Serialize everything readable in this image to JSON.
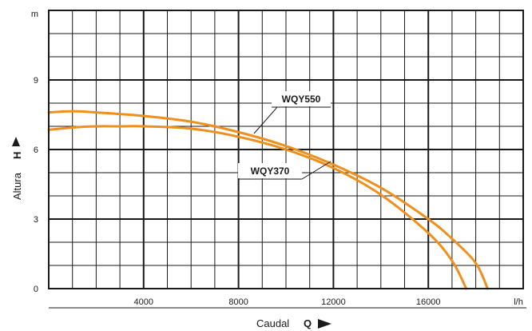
{
  "chart_data": {
    "type": "line",
    "x_axis": {
      "title": "Caudal",
      "letter": "Q",
      "unit": "l/h",
      "range": [
        0,
        20000
      ],
      "tick_values": [
        4000,
        8000,
        12000,
        16000
      ],
      "tick_labels": [
        "4000",
        "8000",
        "12000",
        "16000"
      ],
      "minor_step": 1000
    },
    "y_axis": {
      "title": "Altura",
      "letter": "H",
      "unit": "m",
      "range": [
        0,
        12
      ],
      "tick_values": [
        0,
        3,
        6,
        9
      ],
      "tick_labels": [
        "0",
        "3",
        "6",
        "9"
      ],
      "minor_step": 1
    },
    "grid": true,
    "series": [
      {
        "name": "WQY550",
        "color": "#f0901c",
        "x": [
          0,
          1000,
          2000,
          4000,
          6000,
          8000,
          10000,
          12000,
          14000,
          16000,
          17000,
          18000,
          18500
        ],
        "y": [
          7.6,
          7.65,
          7.6,
          7.45,
          7.2,
          6.75,
          6.15,
          5.35,
          4.35,
          3.0,
          2.15,
          1.1,
          0.0
        ]
      },
      {
        "name": "WQY370",
        "color": "#f0901c",
        "x": [
          0,
          1000,
          2000,
          3000,
          4000,
          6000,
          8000,
          10000,
          12000,
          14000,
          16000,
          17000,
          17600
        ],
        "y": [
          6.85,
          6.95,
          7.0,
          7.0,
          7.0,
          6.9,
          6.55,
          6.0,
          5.2,
          4.05,
          2.4,
          1.2,
          0.0
        ]
      }
    ]
  }
}
